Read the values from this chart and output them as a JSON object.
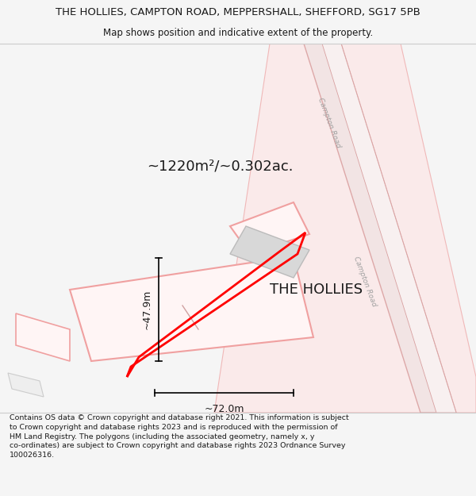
{
  "title_line1": "THE HOLLIES, CAMPTON ROAD, MEPPERSHALL, SHEFFORD, SG17 5PB",
  "title_line2": "Map shows position and indicative extent of the property.",
  "area_label": "~1220m²/~0.302ac.",
  "property_name": "THE HOLLIES",
  "dim_height": "~47.9m",
  "dim_width": "~72.0m",
  "road_label": "Campton Road",
  "footer_text": "Contains OS data © Crown copyright and database right 2021. This information is subject to Crown copyright and database rights 2023 and is reproduced with the permission of HM Land Registry. The polygons (including the associated geometry, namely x, y co-ordinates) are subject to Crown copyright and database rights 2023 Ordnance Survey 100026316.",
  "bg_color": "#f5f5f5",
  "map_bg_color": "#ffffff",
  "road_fill_color": "#f5e8e8",
  "road_edge_color": "#e8b0b0",
  "road_inner_color": "#eeeeee",
  "plot_outline_color": "#ff0000",
  "building_fill_color": "#d8d8d8",
  "building_edge_color": "#bbbbbb",
  "dim_line_color": "#000000",
  "text_color": "#1a1a1a",
  "light_pink": "#f7d8d8",
  "mid_pink": "#f0c0c0",
  "font_family": "DejaVu Sans"
}
